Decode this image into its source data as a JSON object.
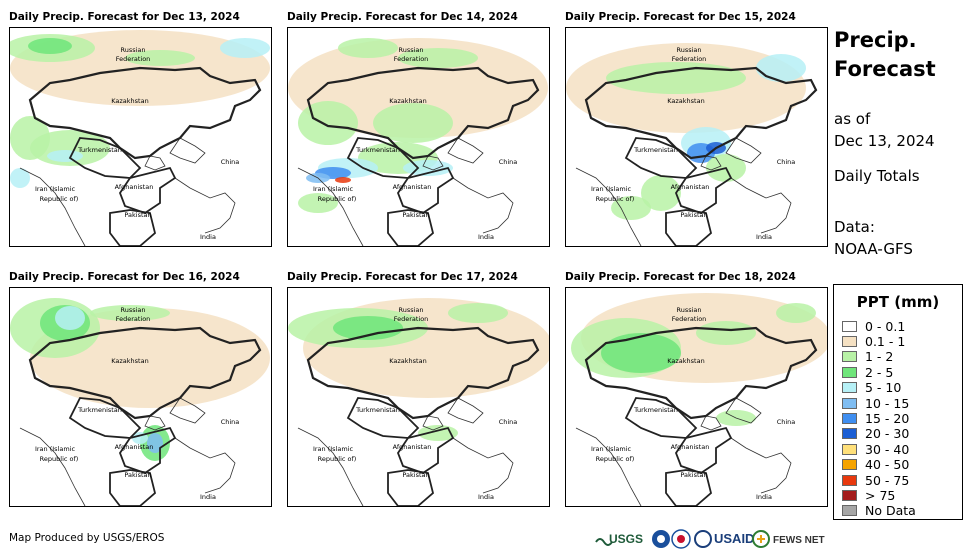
{
  "panels": [
    {
      "title": "Daily Precip. Forecast for Dec 13, 2024"
    },
    {
      "title": "Daily Precip. Forecast for Dec 14, 2024"
    },
    {
      "title": "Daily Precip. Forecast for Dec 15, 2024"
    },
    {
      "title": "Daily Precip. Forecast for Dec 16, 2024"
    },
    {
      "title": "Daily Precip. Forecast for Dec 17, 2024"
    },
    {
      "title": "Daily Precip. Forecast for Dec 18, 2024"
    }
  ],
  "map_labels": {
    "russia_1": "Russian",
    "russia_2": "Federation",
    "kazakhstan": "Kazakhstan",
    "turkmenistan": "Turkmenistan",
    "china": "China",
    "iran_1": "Iran  (Islamic",
    "iran_2": "Republic of)",
    "afghanistan": "Afghanistan",
    "pakistan": "Pakistan",
    "india": "India"
  },
  "sidebar": {
    "title_line1": "Precip.",
    "title_line2": "Forecast",
    "asof_line1": "as of",
    "asof_line2": "Dec 13, 2024",
    "totals": "Daily Totals",
    "data_line1": "Data:",
    "data_line2": "NOAA-GFS"
  },
  "legend": {
    "title": "PPT (mm)",
    "items": [
      {
        "label": "0 - 0.1",
        "color": "#ffffff"
      },
      {
        "label": "0.1 - 1",
        "color": "#f5e1c3"
      },
      {
        "label": "1 - 2",
        "color": "#b8f2a6"
      },
      {
        "label": "2 - 5",
        "color": "#6fe57a"
      },
      {
        "label": "5 - 10",
        "color": "#b6f0f6"
      },
      {
        "label": "10 - 15",
        "color": "#7fbdf2"
      },
      {
        "label": "15 - 20",
        "color": "#3f8ef0"
      },
      {
        "label": "20 - 30",
        "color": "#1b5ed4"
      },
      {
        "label": "30 - 40",
        "color": "#ffe07a"
      },
      {
        "label": "40 - 50",
        "color": "#f5a300"
      },
      {
        "label": "50 - 75",
        "color": "#e8380d"
      },
      {
        "label": "> 75",
        "color": "#a31b1b"
      },
      {
        "label": "No Data",
        "color": "#a6a6a6"
      }
    ]
  },
  "footer": {
    "credit": "Map Produced by USGS/EROS",
    "logo_usgs": "USGS",
    "logo_usaid": "USAID",
    "logo_fews": "FEWS NET"
  }
}
